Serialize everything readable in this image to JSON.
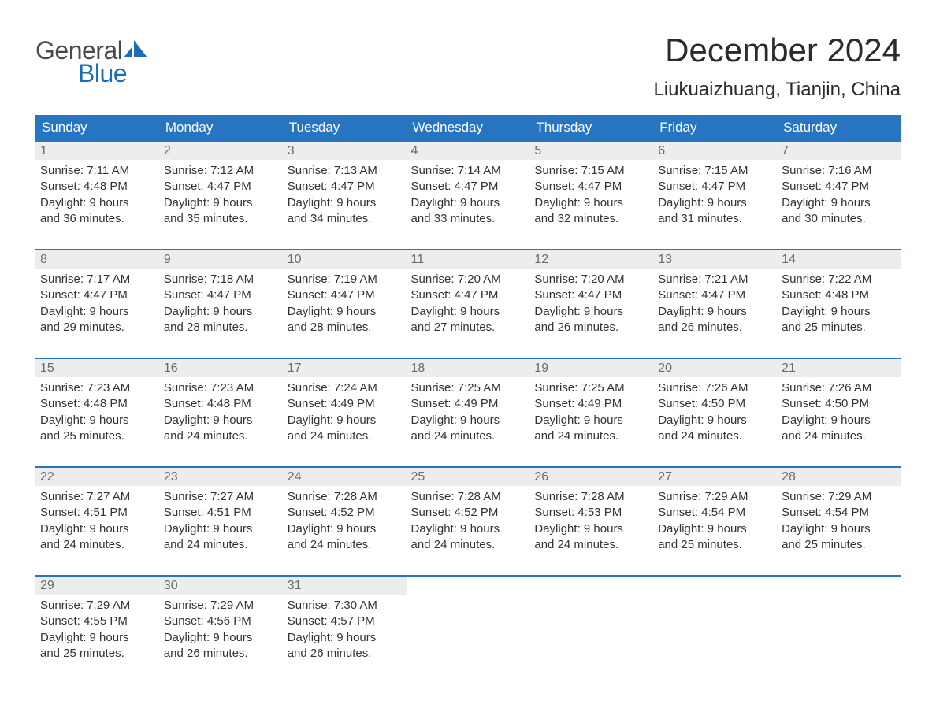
{
  "brand": {
    "word1": "General",
    "word2": "Blue",
    "mark_color": "#1e6bb8",
    "text_color_word1": "#4a4a4a",
    "text_color_word2": "#1e6bb8"
  },
  "header": {
    "title": "December 2024",
    "location": "Liukuaizhuang, Tianjin, China"
  },
  "colors": {
    "header_row_bg": "#2775c0",
    "header_row_text": "#ffffff",
    "day_border": "#2775c0",
    "day_bg": "#ededed",
    "day_num_color": "#6b6b6b",
    "body_text": "#333333",
    "page_bg": "#ffffff"
  },
  "typography": {
    "title_fontsize": 42,
    "location_fontsize": 24,
    "dayhead_fontsize": 17,
    "cell_fontsize": 15,
    "logo_fontsize": 32
  },
  "dayHeaders": [
    "Sunday",
    "Monday",
    "Tuesday",
    "Wednesday",
    "Thursday",
    "Friday",
    "Saturday"
  ],
  "weeks": [
    [
      {
        "date": "1",
        "sunrise": "Sunrise: 7:11 AM",
        "sunset": "Sunset: 4:48 PM",
        "day1": "Daylight: 9 hours",
        "day2": "and 36 minutes."
      },
      {
        "date": "2",
        "sunrise": "Sunrise: 7:12 AM",
        "sunset": "Sunset: 4:47 PM",
        "day1": "Daylight: 9 hours",
        "day2": "and 35 minutes."
      },
      {
        "date": "3",
        "sunrise": "Sunrise: 7:13 AM",
        "sunset": "Sunset: 4:47 PM",
        "day1": "Daylight: 9 hours",
        "day2": "and 34 minutes."
      },
      {
        "date": "4",
        "sunrise": "Sunrise: 7:14 AM",
        "sunset": "Sunset: 4:47 PM",
        "day1": "Daylight: 9 hours",
        "day2": "and 33 minutes."
      },
      {
        "date": "5",
        "sunrise": "Sunrise: 7:15 AM",
        "sunset": "Sunset: 4:47 PM",
        "day1": "Daylight: 9 hours",
        "day2": "and 32 minutes."
      },
      {
        "date": "6",
        "sunrise": "Sunrise: 7:15 AM",
        "sunset": "Sunset: 4:47 PM",
        "day1": "Daylight: 9 hours",
        "day2": "and 31 minutes."
      },
      {
        "date": "7",
        "sunrise": "Sunrise: 7:16 AM",
        "sunset": "Sunset: 4:47 PM",
        "day1": "Daylight: 9 hours",
        "day2": "and 30 minutes."
      }
    ],
    [
      {
        "date": "8",
        "sunrise": "Sunrise: 7:17 AM",
        "sunset": "Sunset: 4:47 PM",
        "day1": "Daylight: 9 hours",
        "day2": "and 29 minutes."
      },
      {
        "date": "9",
        "sunrise": "Sunrise: 7:18 AM",
        "sunset": "Sunset: 4:47 PM",
        "day1": "Daylight: 9 hours",
        "day2": "and 28 minutes."
      },
      {
        "date": "10",
        "sunrise": "Sunrise: 7:19 AM",
        "sunset": "Sunset: 4:47 PM",
        "day1": "Daylight: 9 hours",
        "day2": "and 28 minutes."
      },
      {
        "date": "11",
        "sunrise": "Sunrise: 7:20 AM",
        "sunset": "Sunset: 4:47 PM",
        "day1": "Daylight: 9 hours",
        "day2": "and 27 minutes."
      },
      {
        "date": "12",
        "sunrise": "Sunrise: 7:20 AM",
        "sunset": "Sunset: 4:47 PM",
        "day1": "Daylight: 9 hours",
        "day2": "and 26 minutes."
      },
      {
        "date": "13",
        "sunrise": "Sunrise: 7:21 AM",
        "sunset": "Sunset: 4:47 PM",
        "day1": "Daylight: 9 hours",
        "day2": "and 26 minutes."
      },
      {
        "date": "14",
        "sunrise": "Sunrise: 7:22 AM",
        "sunset": "Sunset: 4:48 PM",
        "day1": "Daylight: 9 hours",
        "day2": "and 25 minutes."
      }
    ],
    [
      {
        "date": "15",
        "sunrise": "Sunrise: 7:23 AM",
        "sunset": "Sunset: 4:48 PM",
        "day1": "Daylight: 9 hours",
        "day2": "and 25 minutes."
      },
      {
        "date": "16",
        "sunrise": "Sunrise: 7:23 AM",
        "sunset": "Sunset: 4:48 PM",
        "day1": "Daylight: 9 hours",
        "day2": "and 24 minutes."
      },
      {
        "date": "17",
        "sunrise": "Sunrise: 7:24 AM",
        "sunset": "Sunset: 4:49 PM",
        "day1": "Daylight: 9 hours",
        "day2": "and 24 minutes."
      },
      {
        "date": "18",
        "sunrise": "Sunrise: 7:25 AM",
        "sunset": "Sunset: 4:49 PM",
        "day1": "Daylight: 9 hours",
        "day2": "and 24 minutes."
      },
      {
        "date": "19",
        "sunrise": "Sunrise: 7:25 AM",
        "sunset": "Sunset: 4:49 PM",
        "day1": "Daylight: 9 hours",
        "day2": "and 24 minutes."
      },
      {
        "date": "20",
        "sunrise": "Sunrise: 7:26 AM",
        "sunset": "Sunset: 4:50 PM",
        "day1": "Daylight: 9 hours",
        "day2": "and 24 minutes."
      },
      {
        "date": "21",
        "sunrise": "Sunrise: 7:26 AM",
        "sunset": "Sunset: 4:50 PM",
        "day1": "Daylight: 9 hours",
        "day2": "and 24 minutes."
      }
    ],
    [
      {
        "date": "22",
        "sunrise": "Sunrise: 7:27 AM",
        "sunset": "Sunset: 4:51 PM",
        "day1": "Daylight: 9 hours",
        "day2": "and 24 minutes."
      },
      {
        "date": "23",
        "sunrise": "Sunrise: 7:27 AM",
        "sunset": "Sunset: 4:51 PM",
        "day1": "Daylight: 9 hours",
        "day2": "and 24 minutes."
      },
      {
        "date": "24",
        "sunrise": "Sunrise: 7:28 AM",
        "sunset": "Sunset: 4:52 PM",
        "day1": "Daylight: 9 hours",
        "day2": "and 24 minutes."
      },
      {
        "date": "25",
        "sunrise": "Sunrise: 7:28 AM",
        "sunset": "Sunset: 4:52 PM",
        "day1": "Daylight: 9 hours",
        "day2": "and 24 minutes."
      },
      {
        "date": "26",
        "sunrise": "Sunrise: 7:28 AM",
        "sunset": "Sunset: 4:53 PM",
        "day1": "Daylight: 9 hours",
        "day2": "and 24 minutes."
      },
      {
        "date": "27",
        "sunrise": "Sunrise: 7:29 AM",
        "sunset": "Sunset: 4:54 PM",
        "day1": "Daylight: 9 hours",
        "day2": "and 25 minutes."
      },
      {
        "date": "28",
        "sunrise": "Sunrise: 7:29 AM",
        "sunset": "Sunset: 4:54 PM",
        "day1": "Daylight: 9 hours",
        "day2": "and 25 minutes."
      }
    ],
    [
      {
        "date": "29",
        "sunrise": "Sunrise: 7:29 AM",
        "sunset": "Sunset: 4:55 PM",
        "day1": "Daylight: 9 hours",
        "day2": "and 25 minutes."
      },
      {
        "date": "30",
        "sunrise": "Sunrise: 7:29 AM",
        "sunset": "Sunset: 4:56 PM",
        "day1": "Daylight: 9 hours",
        "day2": "and 26 minutes."
      },
      {
        "date": "31",
        "sunrise": "Sunrise: 7:30 AM",
        "sunset": "Sunset: 4:57 PM",
        "day1": "Daylight: 9 hours",
        "day2": "and 26 minutes."
      },
      null,
      null,
      null,
      null
    ]
  ]
}
